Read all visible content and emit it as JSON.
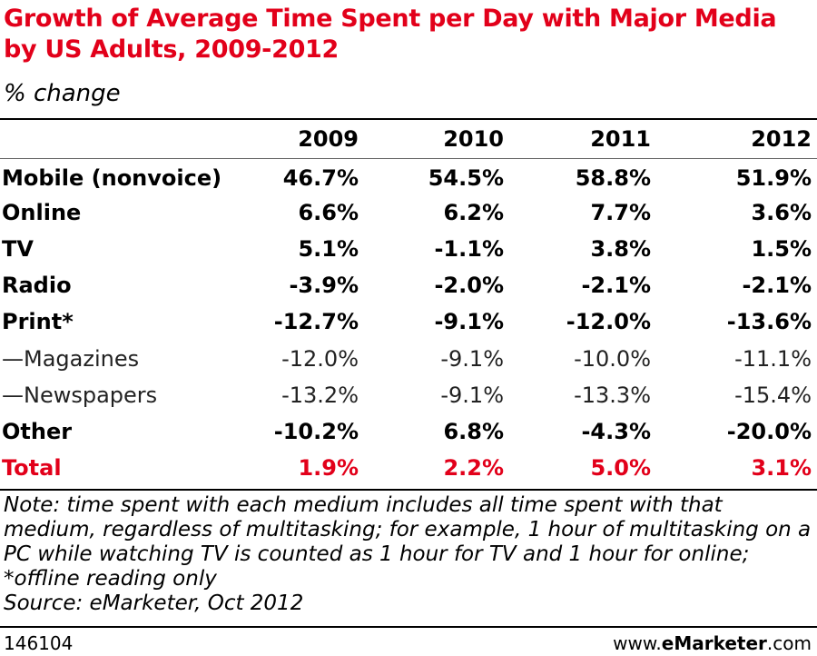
{
  "chart_data": {
    "type": "table",
    "title": "Growth of Average Time Spent per Day with Major Media by US Adults, 2009-2012",
    "subtitle": "% change",
    "columns": [
      "2009",
      "2010",
      "2011",
      "2012"
    ],
    "rows": [
      {
        "label": "Mobile (nonvoice)",
        "style": "bold",
        "values": [
          "46.7%",
          "54.5%",
          "58.8%",
          "51.9%"
        ]
      },
      {
        "label": "Online",
        "style": "bold",
        "values": [
          "6.6%",
          "6.2%",
          "7.7%",
          "3.6%"
        ]
      },
      {
        "label": "TV",
        "style": "bold",
        "values": [
          "5.1%",
          "-1.1%",
          "3.8%",
          "1.5%"
        ]
      },
      {
        "label": "Radio",
        "style": "bold",
        "values": [
          "-3.9%",
          "-2.0%",
          "-2.1%",
          "-2.1%"
        ]
      },
      {
        "label": "Print*",
        "style": "bold",
        "values": [
          "-12.7%",
          "-9.1%",
          "-12.0%",
          "-13.6%"
        ]
      },
      {
        "label": "—Magazines",
        "style": "sub",
        "values": [
          "-12.0%",
          "-9.1%",
          "-10.0%",
          "-11.1%"
        ]
      },
      {
        "label": "—Newspapers",
        "style": "sub",
        "values": [
          "-13.2%",
          "-9.1%",
          "-13.3%",
          "-15.4%"
        ]
      },
      {
        "label": "Other",
        "style": "bold",
        "values": [
          "-10.2%",
          "6.8%",
          "-4.3%",
          "-20.0%"
        ]
      },
      {
        "label": "Total",
        "style": "total",
        "values": [
          "1.9%",
          "2.2%",
          "5.0%",
          "3.1%"
        ]
      }
    ],
    "note": "Note: time spent with each medium includes all time spent with that medium, regardless of multitasking; for example, 1 hour of multitasking on a PC while watching TV is counted as 1 hour for TV and 1 hour for online; *offline reading only",
    "source": "Source: eMarketer, Oct 2012",
    "chart_id": "146104",
    "brand_prefix": "www.",
    "brand_name": "eMarketer",
    "brand_suffix": ".com",
    "colors": {
      "accent": "#e2001a",
      "text": "#000000"
    }
  }
}
